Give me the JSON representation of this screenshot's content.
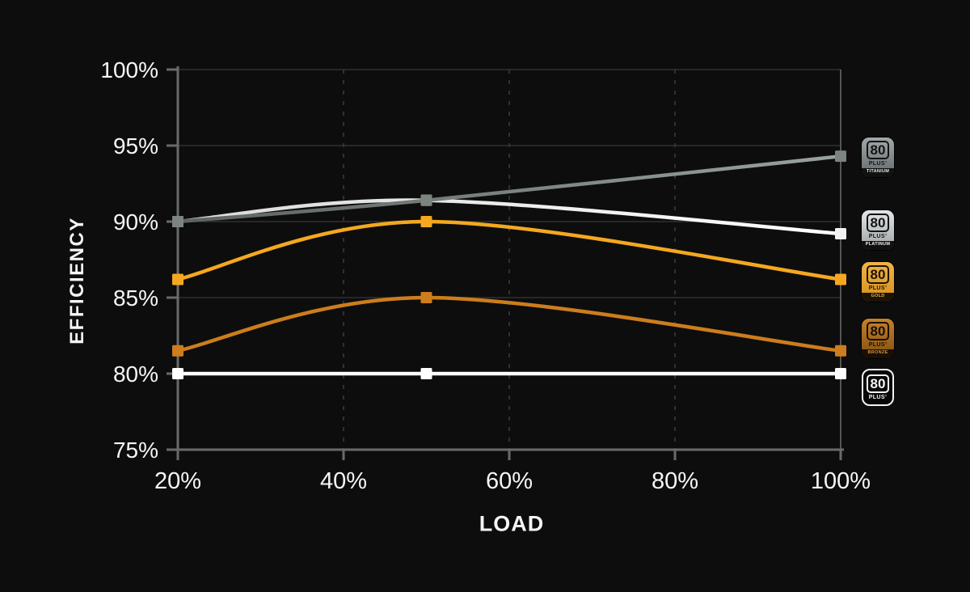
{
  "page": {
    "background": "#0d0d0d"
  },
  "chart_data": {
    "type": "line",
    "title": "",
    "xlabel": "LOAD",
    "ylabel": "EFFICIENCY",
    "xlim": [
      20,
      100
    ],
    "ylim": [
      75,
      100
    ],
    "x": [
      20,
      50,
      100
    ],
    "x_ticks": [
      {
        "v": 20,
        "label": "20%"
      },
      {
        "v": 40,
        "label": "40%"
      },
      {
        "v": 60,
        "label": "60%"
      },
      {
        "v": 80,
        "label": "80%"
      },
      {
        "v": 100,
        "label": "100%"
      }
    ],
    "y_ticks": [
      {
        "v": 75,
        "label": "75%"
      },
      {
        "v": 80,
        "label": "80%"
      },
      {
        "v": 85,
        "label": "85%"
      },
      {
        "v": 90,
        "label": "90%"
      },
      {
        "v": 95,
        "label": "95%"
      },
      {
        "v": 100,
        "label": "100%"
      }
    ],
    "grid": {
      "horizontal": "solid",
      "vertical_dashed_at": [
        40,
        60,
        80
      ],
      "right_border": true
    },
    "legend_position": "right",
    "series": [
      {
        "name": "80 PLUS Titanium",
        "color": "#7b847f",
        "gradient": [
          "#5d635e",
          "#9aa39e"
        ],
        "marker": "square",
        "values": [
          90.0,
          91.4,
          94.3
        ]
      },
      {
        "name": "80 PLUS Platinum",
        "color": "#f2f2f2",
        "gradient": [
          "#d9d9d9",
          "#ffffff"
        ],
        "marker": "square",
        "values": [
          90.0,
          91.4,
          89.2
        ]
      },
      {
        "name": "80 PLUS Gold",
        "color": "#f5a81f",
        "marker": "square",
        "values": [
          86.2,
          90.0,
          86.2
        ]
      },
      {
        "name": "80 PLUS Bronze",
        "color": "#cd7d1c",
        "marker": "square",
        "values": [
          81.5,
          85.0,
          81.5
        ]
      },
      {
        "name": "80 PLUS",
        "color": "#ffffff",
        "marker": "square",
        "values": [
          80.0,
          80.0,
          80.0
        ]
      }
    ]
  },
  "legend": {
    "badges": [
      {
        "number": "80",
        "plus_label": "PLUS’",
        "tier": "TITANIUM",
        "frame_top": "#a2a8a9",
        "frame_bottom": "#62686a",
        "text_color": "#141414",
        "band_bg": "#111111",
        "band_text": "#e8eaea"
      },
      {
        "number": "80",
        "plus_label": "PLUS’",
        "tier": "PLATINUM",
        "frame_top": "#e3e6e7",
        "frame_bottom": "#9ba2a4",
        "text_color": "#141414",
        "band_bg": "#101010",
        "band_text": "#f5f5f5"
      },
      {
        "number": "80",
        "plus_label": "PLUS’",
        "tier": "GOLD",
        "frame_top": "#f2b349",
        "frame_bottom": "#d2911b",
        "text_color": "#1d1406",
        "band_bg": "#1b1305",
        "band_text": "#efb14a"
      },
      {
        "number": "80",
        "plus_label": "PLUS’",
        "tier": "BRONZE",
        "frame_top": "#c6812b",
        "frame_bottom": "#7f500f",
        "text_color": "#190f03",
        "band_bg": "#190f03",
        "band_text": "#d3973f"
      },
      {
        "number": "80",
        "plus_label": "PLUS’",
        "tier": "",
        "frame_top": "#070707",
        "frame_bottom": "#070707",
        "text_color": "#f5f5f5",
        "band_bg": "#070707",
        "band_text": "#f5f5f5"
      }
    ]
  }
}
